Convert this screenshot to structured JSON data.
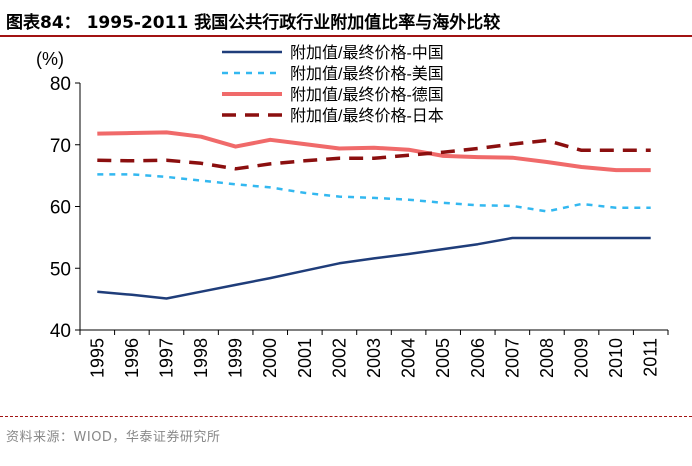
{
  "header": {
    "prefix": "图表84：",
    "title": "1995-2011 我国公共行政行业附加值比率与海外比较"
  },
  "footer": {
    "source": "资料来源：WIOD，华泰证券研究所"
  },
  "chart_data": {
    "type": "line",
    "unit_label": "(%)",
    "categories": [
      "1995",
      "1996",
      "1997",
      "1998",
      "1999",
      "2000",
      "2001",
      "2002",
      "2003",
      "2004",
      "2005",
      "2006",
      "2007",
      "2008",
      "2009",
      "2010",
      "2011"
    ],
    "ylim": [
      40,
      80
    ],
    "yticks": [
      40,
      50,
      60,
      70,
      80
    ],
    "grid": false,
    "legend_position": "top-center",
    "series": [
      {
        "name": "附加值/最终价格-中国",
        "color": "#1f3d7a",
        "dash": "solid",
        "values": [
          46.2,
          45.7,
          45.1,
          46.2,
          47.3,
          48.4,
          49.6,
          50.8,
          51.6,
          52.3,
          53.1,
          53.9,
          54.9,
          54.9,
          54.9,
          54.9,
          54.9
        ]
      },
      {
        "name": "附加值/最终价格-美国",
        "color": "#33b8f0",
        "dash": "short",
        "values": [
          65.2,
          65.2,
          64.8,
          64.2,
          63.6,
          63.1,
          62.2,
          61.6,
          61.4,
          61.1,
          60.6,
          60.2,
          60.1,
          59.2,
          60.4,
          59.8,
          59.8
        ]
      },
      {
        "name": "附加值/最终价格-德国",
        "color": "#f06a6a",
        "dash": "solid",
        "values": [
          71.8,
          71.9,
          72.0,
          71.3,
          69.7,
          70.8,
          70.1,
          69.4,
          69.5,
          69.2,
          68.2,
          68.0,
          67.9,
          67.2,
          66.4,
          65.9,
          65.9
        ]
      },
      {
        "name": "附加值/最终价格-日本",
        "color": "#8b0f0f",
        "dash": "long",
        "values": [
          67.5,
          67.4,
          67.5,
          67.0,
          66.1,
          66.9,
          67.4,
          67.8,
          67.8,
          68.3,
          68.8,
          69.4,
          70.1,
          70.7,
          69.1,
          69.1,
          69.1
        ]
      }
    ]
  }
}
